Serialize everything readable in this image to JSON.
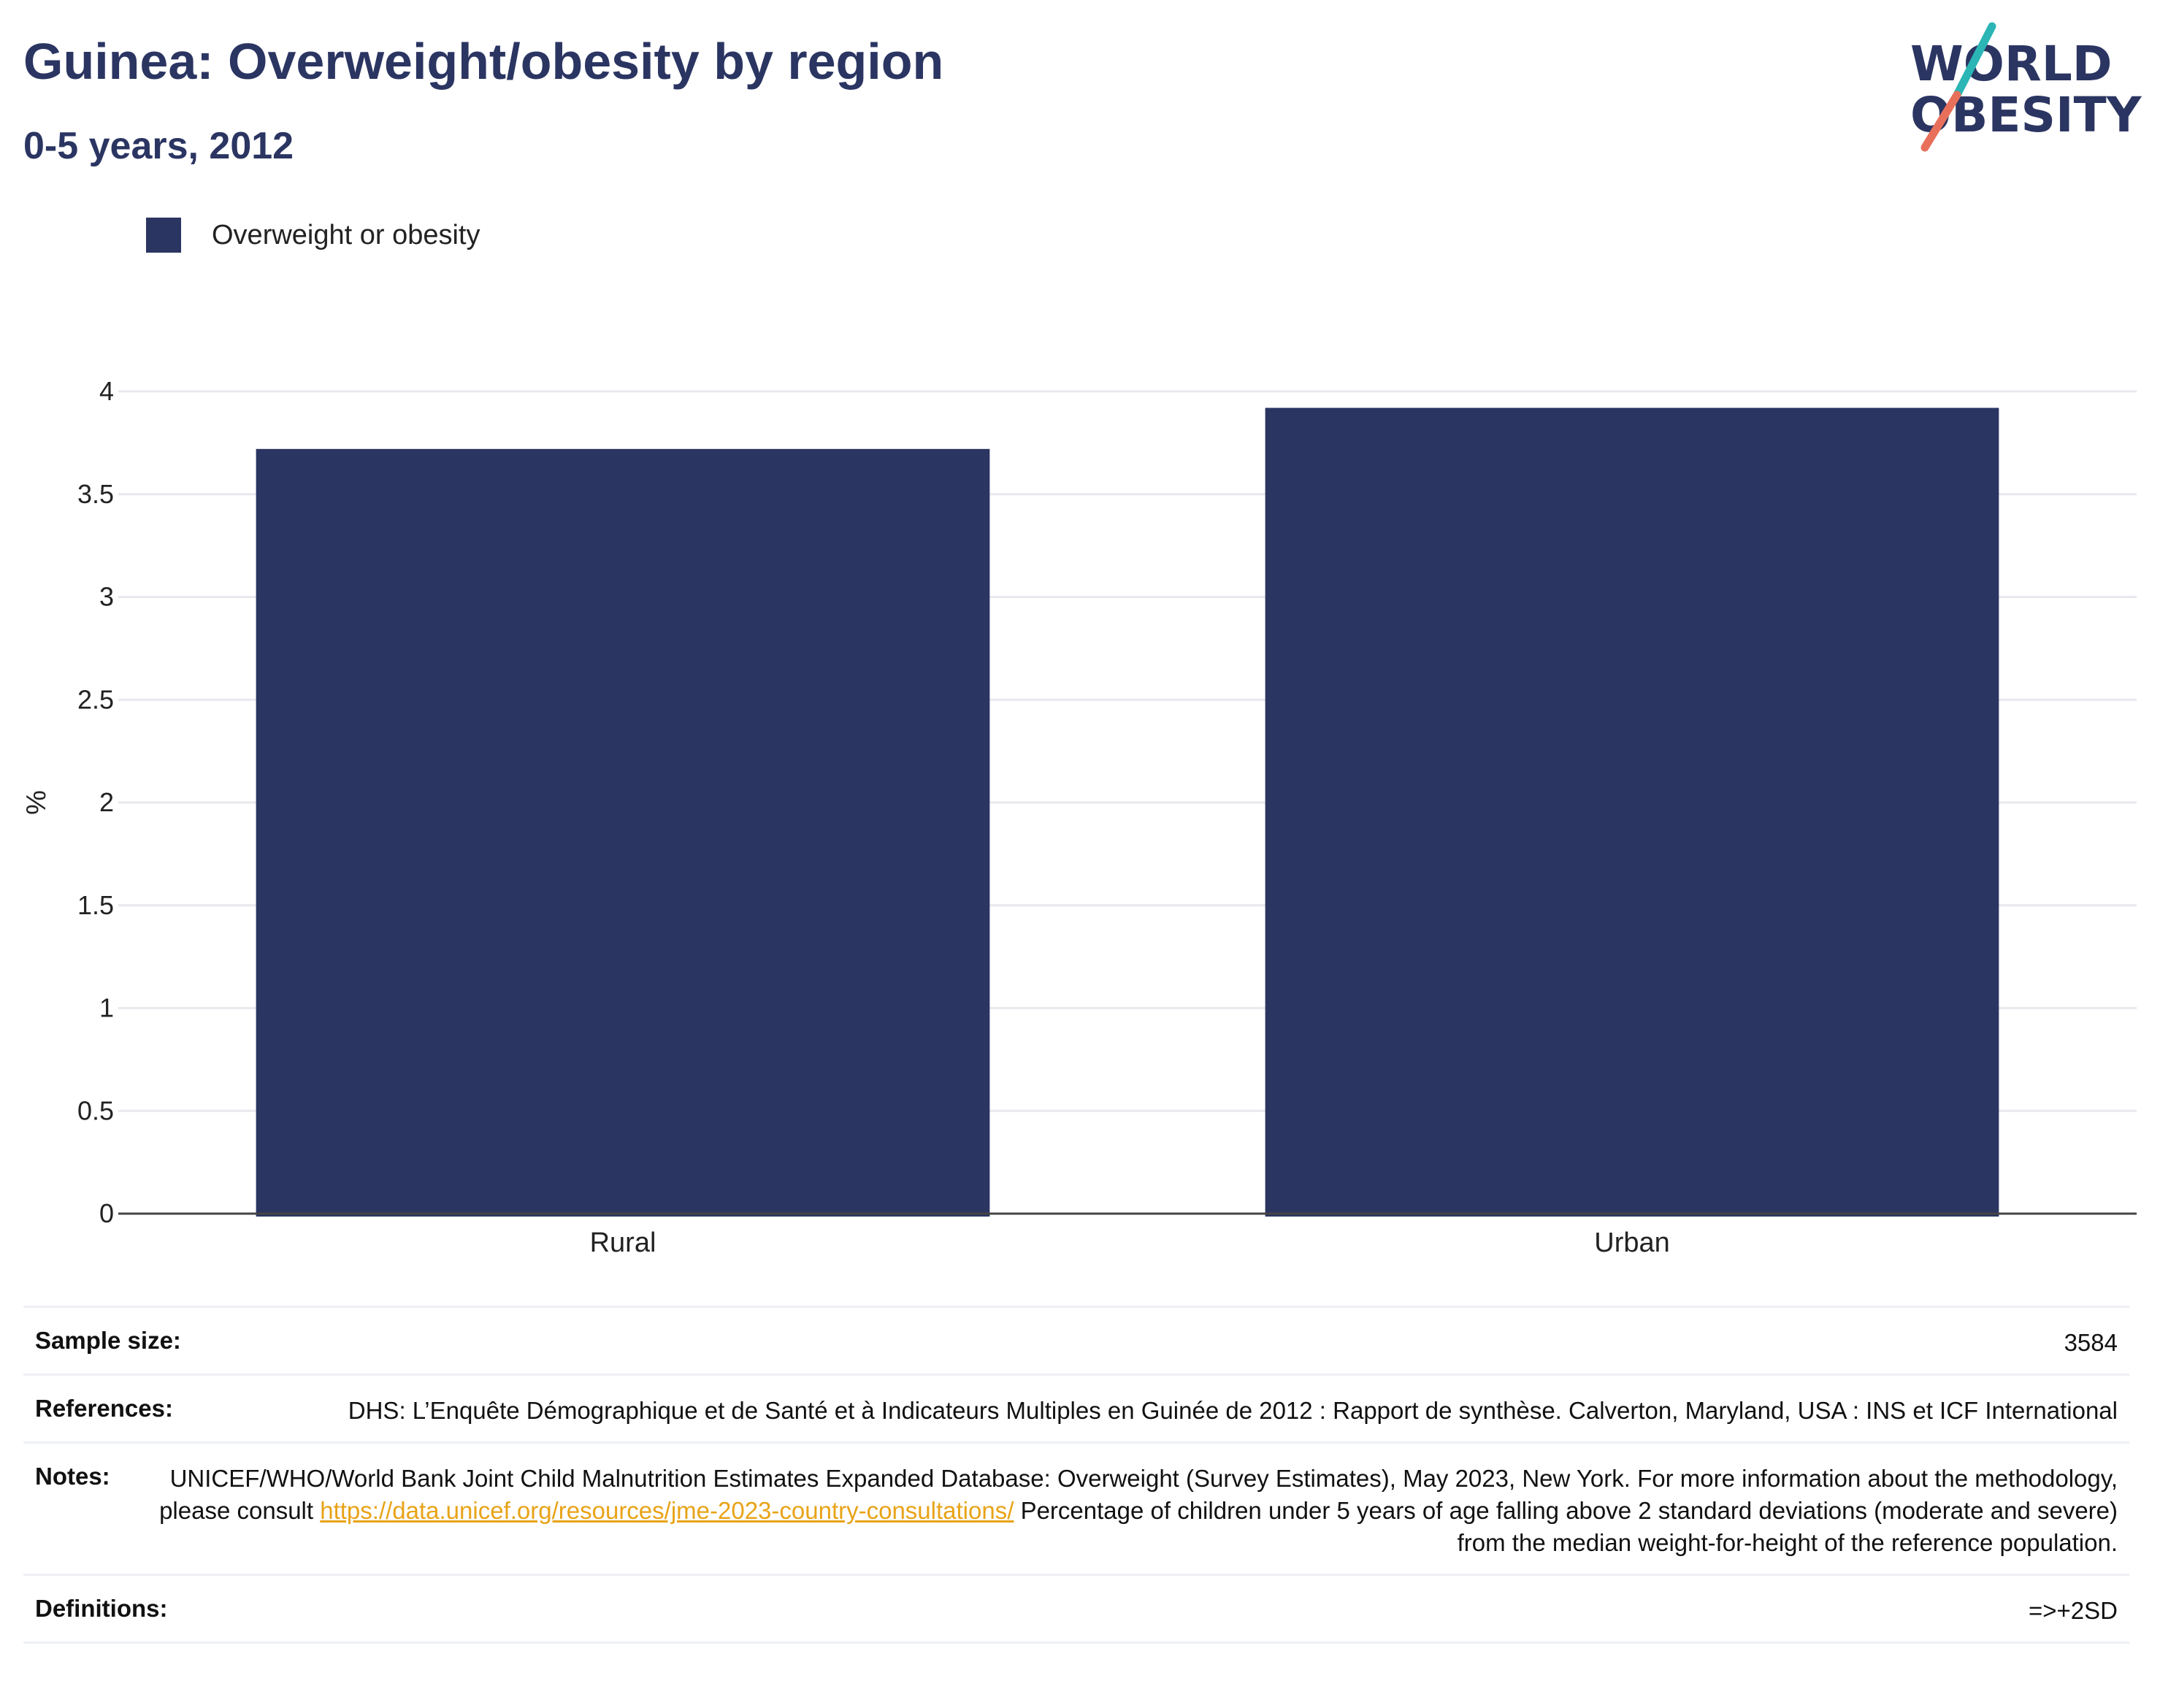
{
  "header": {
    "title": "Guinea: Overweight/obesity by region",
    "subtitle": "0-5 years, 2012"
  },
  "logo": {
    "line1": "WORLD",
    "line2": "OBESITY",
    "text_color": "#2b3562",
    "slash_top_color": "#2bb5b5",
    "slash_bottom_color": "#e8705a"
  },
  "colors": {
    "bar": "#2b3562",
    "grid": "#e8e8ee",
    "axis": "#444444",
    "link": "#e8a317"
  },
  "chart_data": {
    "type": "bar",
    "categories": [
      "Rural",
      "Urban"
    ],
    "series": [
      {
        "name": "Overweight or obesity",
        "values": [
          3.72,
          3.92
        ]
      }
    ],
    "xlabel": "",
    "ylabel": "%",
    "ylim": [
      0,
      4
    ],
    "yticks": [
      0,
      0.5,
      1,
      1.5,
      2,
      2.5,
      3,
      3.5,
      4
    ],
    "grid": true,
    "legend_position": "top-left"
  },
  "meta": {
    "sample_size_label": "Sample size:",
    "sample_size_value": "3584",
    "references_label": "References:",
    "references_value": "DHS: L’Enquête Démographique et de Santé et à Indicateurs Multiples en Guinée de 2012 : Rapport de synthèse. Calverton, Maryland, USA : INS et ICF International",
    "notes_label": "Notes:",
    "notes_text_before": "UNICEF/WHO/World Bank Joint Child Malnutrition Estimates Expanded Database: Overweight (Survey Estimates), May 2023, New York. For more information about the methodology, please consult",
    "notes_link": "https://data.unicef.org/resources/jme-2023-country-consultations/",
    "notes_text_after": "Percentage of children under 5 years of age falling above 2 standard deviations (moderate and severe) from the median weight-for-height of the reference population.",
    "definitions_label": "Definitions:",
    "definitions_value": "=>+2SD"
  }
}
